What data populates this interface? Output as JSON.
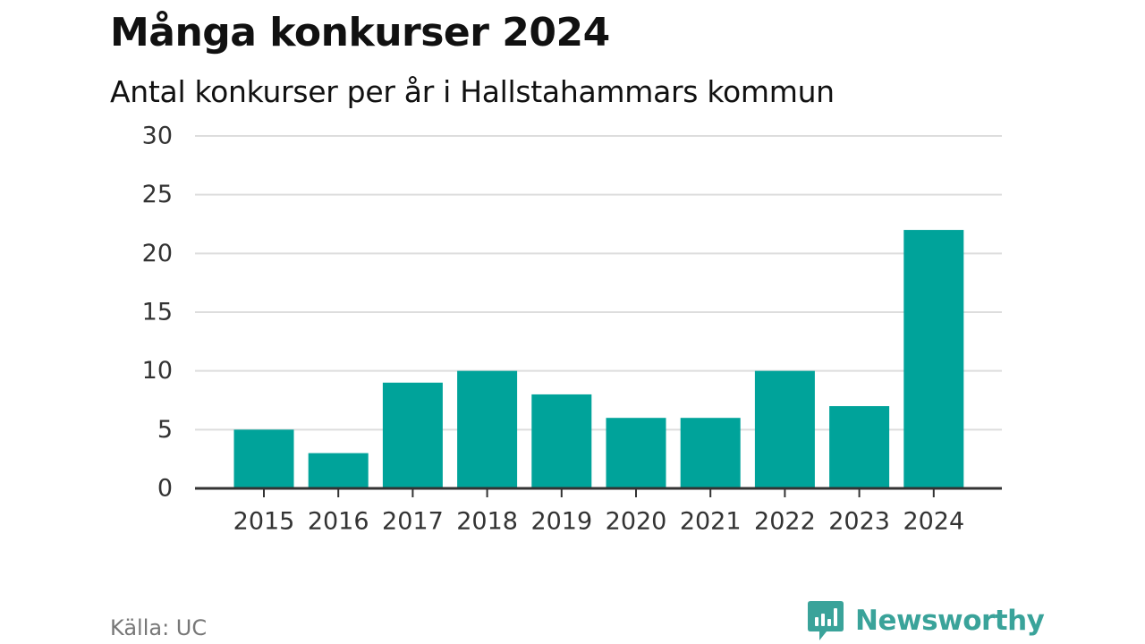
{
  "chart_data": {
    "type": "bar",
    "title": "Många konkurser 2024",
    "subtitle": "Antal konkurser per år i Hallstahammars kommun",
    "categories": [
      "2015",
      "2016",
      "2017",
      "2018",
      "2019",
      "2020",
      "2021",
      "2022",
      "2023",
      "2024"
    ],
    "values": [
      5,
      3,
      9,
      10,
      8,
      6,
      6,
      10,
      7,
      22
    ],
    "ylim": [
      0,
      30
    ],
    "yticks": [
      0,
      5,
      10,
      15,
      20,
      25,
      30
    ],
    "xlabel": "",
    "ylabel": "",
    "grid": true,
    "legend": "none",
    "bar_color": "#00a39a",
    "grid_color": "#dddddd",
    "axis_color": "#333333"
  },
  "footer": {
    "source": "Källa: UC",
    "brand": "Newsworthy",
    "brand_icon": "newsworthy-bar-chart-icon",
    "brand_color": "#3aa39a"
  }
}
